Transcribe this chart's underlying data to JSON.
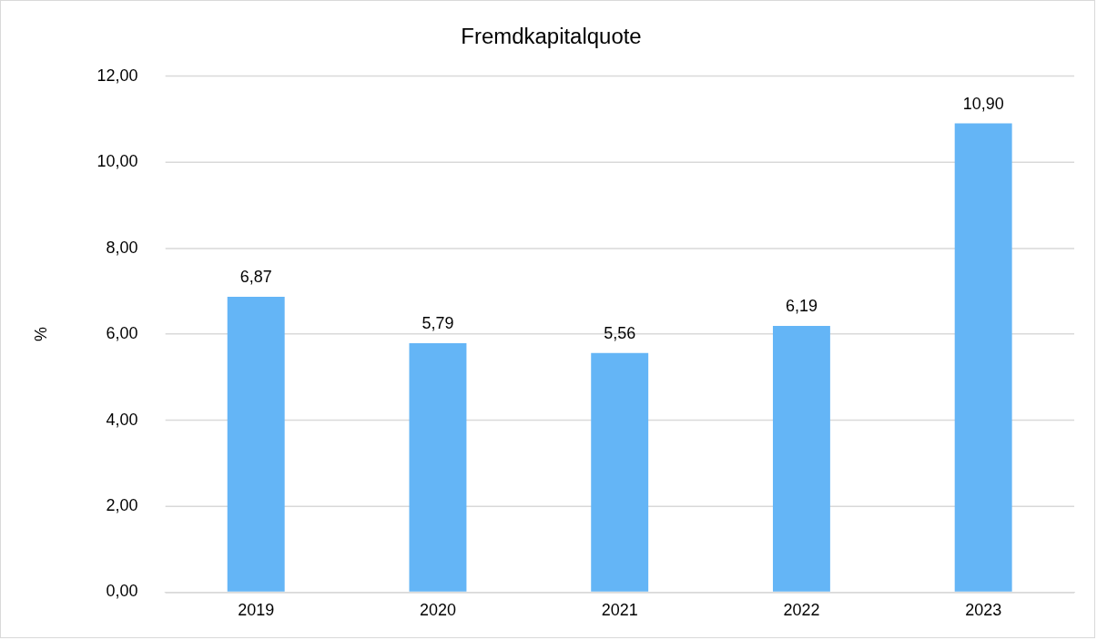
{
  "chart_data": {
    "type": "bar",
    "title": "Fremdkapitalquote",
    "ylabel": "%",
    "categories": [
      "2019",
      "2020",
      "2021",
      "2022",
      "2023"
    ],
    "values": [
      6.87,
      5.79,
      5.56,
      6.19,
      10.9
    ],
    "value_labels": [
      "6,87",
      "5,79",
      "5,56",
      "6,19",
      "10,90"
    ],
    "color": "#64b5f6",
    "ylim": [
      0,
      12
    ],
    "yticks": [
      {
        "value": 0,
        "label": "0,00"
      },
      {
        "value": 2,
        "label": "2,00"
      },
      {
        "value": 4,
        "label": "4,00"
      },
      {
        "value": 6,
        "label": "6,00"
      },
      {
        "value": 8,
        "label": "8,00"
      },
      {
        "value": 10,
        "label": "10,00"
      },
      {
        "value": 12,
        "label": "12,00"
      }
    ],
    "grid": "y",
    "legend": false
  }
}
